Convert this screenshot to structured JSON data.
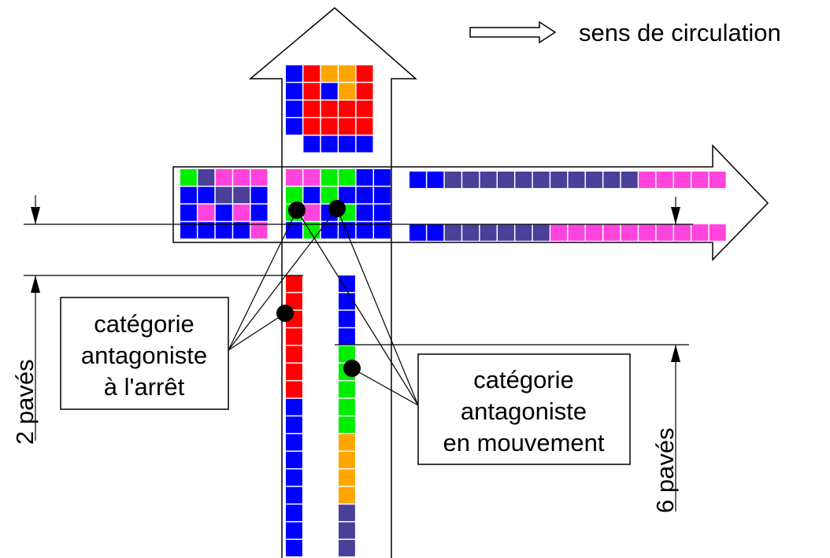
{
  "legend": {
    "label": "sens de circulation"
  },
  "callouts": [
    {
      "lines": [
        "catégorie",
        "antagoniste",
        "à l'arrêt"
      ]
    },
    {
      "lines": [
        "catégorie",
        "antagoniste",
        "en mouvement"
      ]
    }
  ],
  "dimensions": [
    {
      "label": "2 pavés"
    },
    {
      "label": "6 pavés"
    }
  ]
}
